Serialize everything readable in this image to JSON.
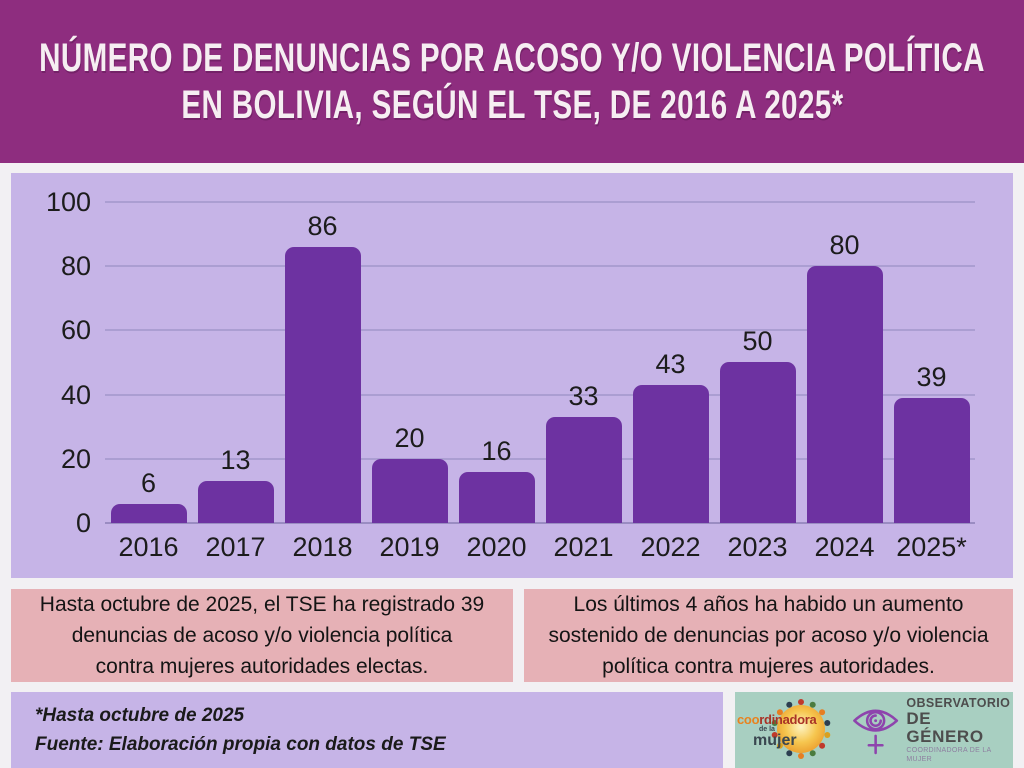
{
  "header": {
    "title_line1": "NÚMERO DE DENUNCIAS POR ACOSO Y/O VIOLENCIA POLÍTICA",
    "title_line2": "EN BOLIVIA, SEGÚN EL TSE, DE 2016 A 2025*"
  },
  "chart_data": {
    "type": "bar",
    "title": "Número de denuncias por acoso y/o violencia política en Bolivia, según el TSE, de 2016 a 2025*",
    "categories": [
      "2016",
      "2017",
      "2018",
      "2019",
      "2020",
      "2021",
      "2022",
      "2023",
      "2024",
      "2025*"
    ],
    "values": [
      6,
      13,
      86,
      20,
      16,
      33,
      43,
      50,
      80,
      39
    ],
    "xlabel": "",
    "ylabel": "",
    "ylim": [
      0,
      100
    ],
    "yticks": [
      0,
      20,
      40,
      60,
      80,
      100
    ],
    "grid": true,
    "legend": false,
    "data_labels": true
  },
  "callouts": {
    "left_lines": [
      "Hasta octubre de 2025, el TSE ha registrado 39",
      "denuncias de acoso y/o violencia política",
      "contra mujeres autoridades electas."
    ],
    "right_lines": [
      "Los últimos 4 años ha habido un aumento",
      "sostenido de denuncias por acoso y/o violencia",
      "política contra mujeres autoridades."
    ]
  },
  "footnote": {
    "line1": "*Hasta octubre de 2025",
    "line2": "Fuente: Elaboración propia con datos de TSE"
  },
  "logos": {
    "coordinadora": {
      "name_part1": "coo",
      "name_part2": "rdinadora",
      "middle": "de la",
      "bottom": "mujer"
    },
    "observatorio": {
      "line1": "OBSERVATORIO",
      "line2": "DE GÉNERO",
      "line3": "COORDINADORA DE LA MUJER"
    }
  },
  "colors": {
    "header_bg": "#8e2d7f",
    "panel_lavender": "#c6b4e7",
    "bar": "#6d32a1",
    "gridline": "#ab9ed2",
    "callout_pink": "#e6b1b6",
    "logo_green": "#a8cfc1",
    "title_text": "#f6eef2",
    "body_text": "#1c1c1c"
  }
}
